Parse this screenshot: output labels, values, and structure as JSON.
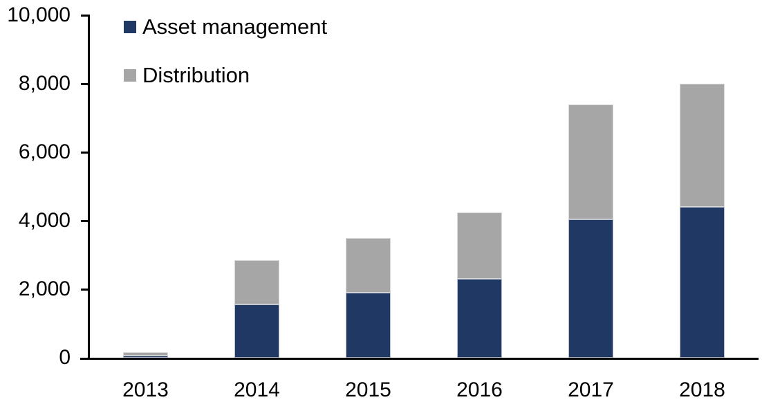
{
  "chart_data": {
    "type": "bar",
    "stacked": true,
    "title": "",
    "xlabel": "",
    "ylabel": "",
    "categories": [
      "2013",
      "2014",
      "2015",
      "2016",
      "2017",
      "2018"
    ],
    "series": [
      {
        "name": "Asset management",
        "color": "#1f3864",
        "values": [
          60,
          1550,
          1900,
          2300,
          4050,
          4400
        ]
      },
      {
        "name": "Distribution",
        "color": "#a6a6a6",
        "values": [
          110,
          1300,
          1600,
          1950,
          3350,
          3600
        ]
      }
    ],
    "totals": [
      170,
      2850,
      3500,
      4250,
      7400,
      8000
    ],
    "ylim": [
      0,
      10000
    ],
    "y_ticks": [
      0,
      2000,
      4000,
      6000,
      8000,
      10000
    ],
    "y_tick_labels": [
      "0",
      "2,000",
      "4,000",
      "6,000",
      "8,000",
      "10,000"
    ],
    "grid": false,
    "legend_position": "top-left-inside"
  },
  "legend": {
    "items": [
      {
        "label": "Asset management",
        "color": "#1f3864"
      },
      {
        "label": "Distribution",
        "color": "#a6a6a6"
      }
    ]
  },
  "colors": {
    "axis": "#000000",
    "background": "#ffffff",
    "text": "#000000"
  }
}
